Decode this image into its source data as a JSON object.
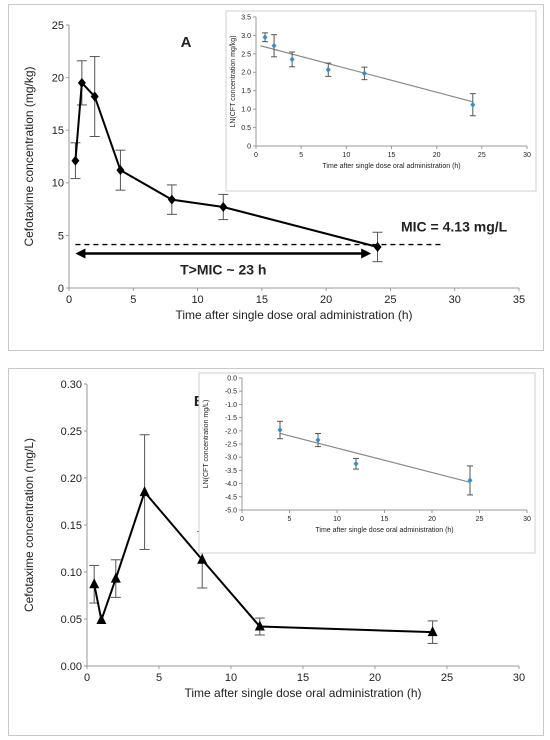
{
  "chart_data": [
    {
      "type": "line",
      "panel_label": "A",
      "xlabel": "Time after single dose oral administration (h)",
      "ylabel": "Cefotaxime concentration (mg/kg)",
      "xlim": [
        0,
        35
      ],
      "ylim": [
        0,
        25
      ],
      "xticks": [
        0,
        5,
        10,
        15,
        20,
        25,
        30,
        35
      ],
      "yticks": [
        0,
        5,
        10,
        15,
        20,
        25
      ],
      "marker": "diamond",
      "grid": false,
      "series": [
        {
          "x": [
            0.5,
            1,
            2,
            4,
            8,
            12,
            24
          ],
          "y": [
            12.1,
            19.5,
            18.2,
            11.2,
            8.4,
            7.7,
            3.9
          ],
          "err": [
            1.7,
            2.1,
            3.8,
            1.9,
            1.4,
            1.2,
            1.4
          ]
        }
      ],
      "mic": {
        "value": 4.13,
        "label": "MIC = 4.13 mg/L"
      },
      "tmic": {
        "from": 0.5,
        "to": 23.5,
        "label": "T>MIC ~ 23 h"
      },
      "inset": {
        "type": "scatter",
        "xlabel": "Time after single dose oral administration (h)",
        "ylabel": "LN(CFT concentration mg/kg)",
        "xlim": [
          0,
          30
        ],
        "ylim": [
          0,
          3.5
        ],
        "xticks": [
          0,
          5,
          10,
          15,
          20,
          25,
          30
        ],
        "yticks": [
          "0",
          "0.5",
          "1.0",
          "1.5",
          "2.0",
          "2.5",
          "3.0",
          "3.5"
        ],
        "x": [
          1,
          2,
          4,
          8,
          12,
          24
        ],
        "y": [
          2.95,
          2.72,
          2.35,
          2.07,
          1.97,
          1.12
        ],
        "err": [
          0.12,
          0.3,
          0.2,
          0.18,
          0.17,
          0.3
        ],
        "trend": [
          [
            0.5,
            2.72
          ],
          [
            24,
            1.2
          ]
        ]
      }
    },
    {
      "type": "line",
      "panel_label": "B",
      "xlabel": "Time after single dose oral administration (h)",
      "ylabel": "Cefotaxime concentration (mg/L)",
      "xlim": [
        0,
        30
      ],
      "ylim": [
        0,
        0.3
      ],
      "xticks": [
        0,
        5,
        10,
        15,
        20,
        25,
        30
      ],
      "yticks": [
        "0.00",
        "0.05",
        "0.10",
        "0.15",
        "0.20",
        "0.25",
        "0.30"
      ],
      "marker": "triangle",
      "grid": false,
      "series": [
        {
          "x": [
            0.5,
            1,
            2,
            4,
            8,
            12,
            24
          ],
          "y": [
            0.087,
            0.049,
            0.093,
            0.185,
            0.113,
            0.042,
            0.036
          ],
          "err": [
            0.02,
            0.0,
            0.02,
            0.061,
            0.03,
            0.009,
            0.012
          ]
        }
      ],
      "inset": {
        "type": "scatter",
        "xlabel": "Time after single dose oral administration (h)",
        "ylabel": "LN(CFT concentration mg/L)",
        "xlim": [
          0,
          30
        ],
        "ylim": [
          -5.0,
          0
        ],
        "xticks": [
          0,
          5,
          10,
          15,
          20,
          25,
          30
        ],
        "yticks": [
          "-5.0",
          "-4.5",
          "-4.0",
          "-3.5",
          "-3.0",
          "-2.5",
          "-2.0",
          "-1.5",
          "-1.0",
          "-0.5",
          "0.0"
        ],
        "x": [
          4,
          8,
          12,
          24
        ],
        "y": [
          -1.97,
          -2.35,
          -3.25,
          -3.88
        ],
        "err": [
          0.33,
          0.25,
          0.2,
          0.55
        ],
        "trend": [
          [
            4,
            -2.1
          ],
          [
            24,
            -3.95
          ]
        ]
      }
    }
  ]
}
